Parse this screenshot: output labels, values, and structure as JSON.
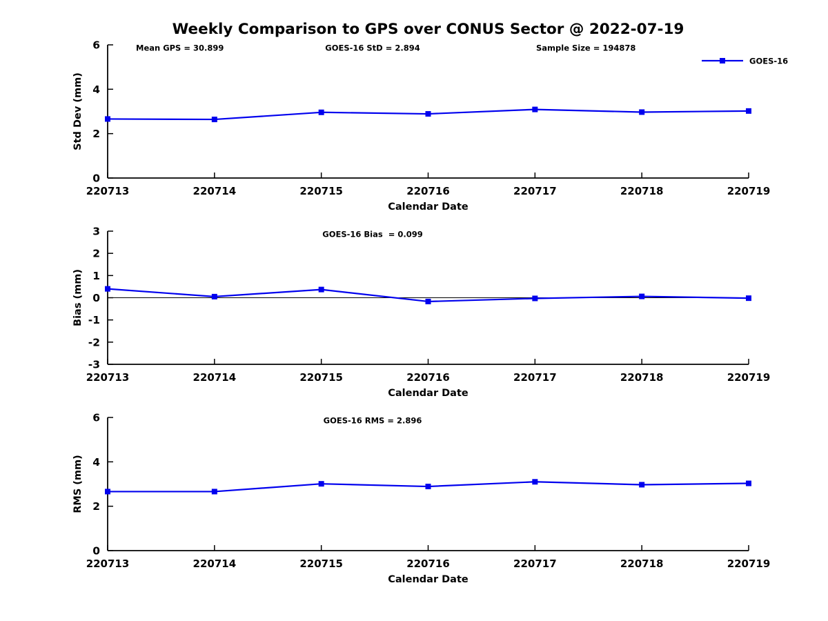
{
  "figure": {
    "title": "Weekly Comparison to GPS over CONUS Sector @ 2022-07-19",
    "background_color": "#ffffff",
    "accent_color": "#0000EE",
    "text_color": "#000000"
  },
  "legend": {
    "label": "GOES-16",
    "marker": "square",
    "color": "#0000EE",
    "position": "top-right-of-first-subplot"
  },
  "chart_data": [
    {
      "type": "line",
      "id": "stddev",
      "annotations": [
        {
          "text": "Mean GPS = 30.899",
          "position": "left"
        },
        {
          "text": "GOES-16 StD = 2.894",
          "position": "center"
        },
        {
          "text": "Sample Size = 194878",
          "position": "right"
        }
      ],
      "xlabel": "Calendar Date",
      "ylabel": "Std Dev (mm)",
      "categories": [
        "220713",
        "220714",
        "220715",
        "220716",
        "220717",
        "220718",
        "220719"
      ],
      "series": [
        {
          "name": "GOES-16",
          "color": "#0000EE",
          "values": [
            2.66,
            2.64,
            2.96,
            2.89,
            3.09,
            2.97,
            3.02
          ]
        }
      ],
      "ylim": [
        0,
        6
      ],
      "yticks": [
        0,
        2,
        4,
        6
      ],
      "grid": false,
      "zero_line": false,
      "show_legend": true
    },
    {
      "type": "line",
      "id": "bias",
      "annotations": [
        {
          "text": "GOES-16 Bias  = 0.099",
          "position": "center"
        }
      ],
      "xlabel": "Calendar Date",
      "ylabel": "Bias (mm)",
      "categories": [
        "220713",
        "220714",
        "220715",
        "220716",
        "220717",
        "220718",
        "220719"
      ],
      "series": [
        {
          "name": "GOES-16",
          "color": "#0000EE",
          "values": [
            0.4,
            0.05,
            0.37,
            -0.17,
            -0.03,
            0.06,
            -0.02
          ]
        }
      ],
      "ylim": [
        -3,
        3
      ],
      "yticks": [
        -3,
        -2,
        -1,
        0,
        1,
        2,
        3
      ],
      "grid": false,
      "zero_line": true,
      "show_legend": false
    },
    {
      "type": "line",
      "id": "rms",
      "annotations": [
        {
          "text": "GOES-16 RMS = 2.896",
          "position": "center"
        }
      ],
      "xlabel": "Calendar Date",
      "ylabel": "RMS (mm)",
      "categories": [
        "220713",
        "220714",
        "220715",
        "220716",
        "220717",
        "220718",
        "220719"
      ],
      "series": [
        {
          "name": "GOES-16",
          "color": "#0000EE",
          "values": [
            2.66,
            2.66,
            3.01,
            2.89,
            3.1,
            2.97,
            3.03
          ]
        }
      ],
      "ylim": [
        0,
        6
      ],
      "yticks": [
        0,
        2,
        4,
        6
      ],
      "grid": false,
      "zero_line": false,
      "show_legend": false
    }
  ]
}
